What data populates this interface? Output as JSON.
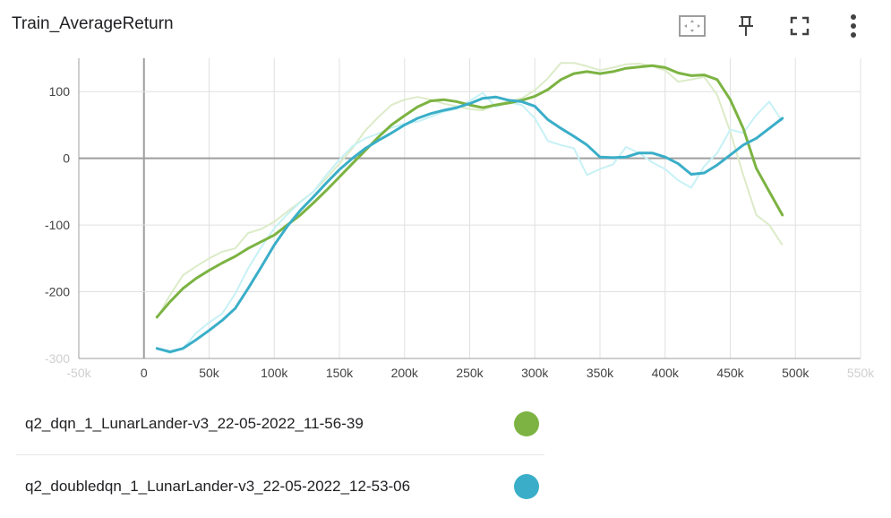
{
  "card": {
    "title": "Train_AverageReturn"
  },
  "toolbar": {
    "icons": [
      "fit-domain-icon",
      "pin-icon",
      "fullscreen-icon",
      "more-vert-icon"
    ]
  },
  "colors": {
    "dqn": "#7cb342",
    "dqn_raw": "#dcebc8",
    "doubledqn": "#3aaec8",
    "doubledqn_raw": "#c7f1f6"
  },
  "chart_data": {
    "type": "line",
    "title": "Train_AverageReturn",
    "xlabel": "",
    "ylabel": "",
    "xlim": [
      -50000,
      550000
    ],
    "ylim": [
      -300,
      150
    ],
    "x_ticks": [
      "-50k",
      "0",
      "50k",
      "100k",
      "150k",
      "200k",
      "250k",
      "300k",
      "350k",
      "400k",
      "450k",
      "500k",
      "550k"
    ],
    "y_ticks": [
      "-300",
      "-200",
      "-100",
      "0",
      "100"
    ],
    "grid": true,
    "series": [
      {
        "name": "q2_dqn_1_LunarLander-v3_22-05-2022_11-56-39",
        "color": "#7cb342",
        "x": [
          10000,
          20000,
          30000,
          40000,
          50000,
          60000,
          70000,
          80000,
          90000,
          100000,
          110000,
          120000,
          130000,
          140000,
          150000,
          160000,
          170000,
          180000,
          190000,
          200000,
          210000,
          220000,
          230000,
          240000,
          250000,
          260000,
          270000,
          280000,
          290000,
          300000,
          310000,
          320000,
          330000,
          340000,
          350000,
          360000,
          370000,
          380000,
          390000,
          400000,
          410000,
          420000,
          430000,
          440000,
          450000,
          460000,
          470000,
          480000,
          490000
        ],
        "smoothed": [
          -238,
          -215,
          -195,
          -180,
          -168,
          -157,
          -147,
          -135,
          -125,
          -115,
          -100,
          -85,
          -67,
          -48,
          -28,
          -8,
          12,
          32,
          50,
          64,
          77,
          86,
          88,
          85,
          80,
          76,
          80,
          83,
          87,
          93,
          103,
          118,
          127,
          130,
          127,
          130,
          135,
          137,
          139,
          136,
          128,
          124,
          125,
          118,
          88,
          45,
          -15,
          -50,
          -85
        ],
        "raw": [
          -240,
          -205,
          -175,
          -162,
          -150,
          -140,
          -135,
          -112,
          -106,
          -95,
          -80,
          -65,
          -50,
          -30,
          -8,
          15,
          42,
          62,
          80,
          88,
          92,
          88,
          82,
          78,
          74,
          72,
          80,
          86,
          90,
          102,
          120,
          143,
          143,
          138,
          132,
          136,
          141,
          142,
          138,
          132,
          115,
          118,
          122,
          95,
          40,
          -25,
          -85,
          -100,
          -130
        ]
      },
      {
        "name": "q2_doubledqn_1_LunarLander-v3_22-05-2022_12-53-06",
        "color": "#3aaec8",
        "x": [
          10000,
          20000,
          30000,
          40000,
          50000,
          60000,
          70000,
          80000,
          90000,
          100000,
          110000,
          120000,
          130000,
          140000,
          150000,
          160000,
          170000,
          180000,
          190000,
          200000,
          210000,
          220000,
          230000,
          240000,
          250000,
          260000,
          270000,
          280000,
          290000,
          300000,
          310000,
          320000,
          330000,
          340000,
          350000,
          360000,
          370000,
          380000,
          390000,
          400000,
          410000,
          420000,
          430000,
          440000,
          450000,
          460000,
          470000,
          480000,
          490000
        ],
        "smoothed": [
          -285,
          -290,
          -285,
          -272,
          -258,
          -243,
          -225,
          -195,
          -163,
          -130,
          -102,
          -78,
          -58,
          -37,
          -17,
          0,
          15,
          27,
          38,
          50,
          60,
          67,
          72,
          76,
          82,
          90,
          92,
          87,
          85,
          78,
          58,
          45,
          33,
          20,
          2,
          1,
          2,
          8,
          8,
          2,
          -8,
          -24,
          -22,
          -10,
          5,
          20,
          30,
          45,
          60
        ]
      }
    ]
  },
  "chart_data_raw_note_free": true,
  "legend": {
    "items": [
      {
        "label": "q2_dqn_1_LunarLander-v3_22-05-2022_11-56-39",
        "color": "#7cb342"
      },
      {
        "label": "q2_doubledqn_1_LunarLander-v3_22-05-2022_12-53-06",
        "color": "#3aaec8"
      }
    ]
  }
}
